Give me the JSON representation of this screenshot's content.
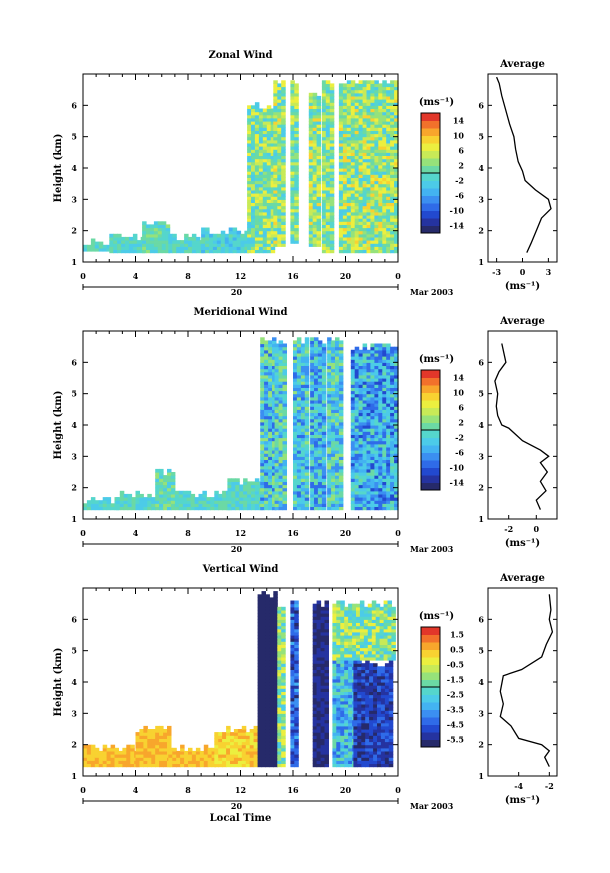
{
  "chart_data": [
    {
      "type": "heatmap",
      "title": "Zonal Wind",
      "ylabel": "Height (km)",
      "xlabel": "",
      "x_ticks": [
        "0",
        "4",
        "8",
        "12",
        "16",
        "20",
        "0"
      ],
      "y_ticks": [
        "1",
        "2",
        "3",
        "4",
        "5",
        "6"
      ],
      "date_label": "20",
      "month_label": "Mar 2003",
      "colorbar": {
        "unit": "(ms⁻¹)",
        "ticks": [
          "14",
          "10",
          "6",
          "2",
          "-2",
          "-6",
          "-10",
          "-14"
        ],
        "range": [
          -16,
          16
        ]
      },
      "profile": {
        "title": "Average",
        "ticks": [
          "-3",
          "0",
          "3"
        ],
        "xlim": [
          -4,
          4
        ],
        "xlabel": "(ms⁻¹)",
        "points": [
          [
            0.5,
            1.3
          ],
          [
            1.0,
            1.6
          ],
          [
            1.6,
            2.0
          ],
          [
            2.2,
            2.4
          ],
          [
            3.3,
            2.7
          ],
          [
            3.0,
            3.0
          ],
          [
            1.5,
            3.3
          ],
          [
            0.3,
            3.6
          ],
          [
            0.0,
            3.9
          ],
          [
            -0.5,
            4.2
          ],
          [
            -0.8,
            4.6
          ],
          [
            -1.0,
            5.0
          ],
          [
            -1.5,
            5.4
          ],
          [
            -2.0,
            5.9
          ],
          [
            -2.4,
            6.3
          ],
          [
            -2.7,
            6.7
          ],
          [
            -3.0,
            6.9
          ]
        ]
      },
      "ylim": [
        1,
        7
      ],
      "xlim": [
        0,
        24
      ],
      "columns": [
        {
          "t0": 0.0,
          "t1": 2.0,
          "bottom": 1.35,
          "top": 1.7,
          "mean": -1,
          "amp": 3
        },
        {
          "t0": 2.0,
          "t1": 4.5,
          "bottom": 1.3,
          "top": 1.9,
          "mean": -1,
          "amp": 3
        },
        {
          "t0": 4.5,
          "t1": 6.5,
          "bottom": 1.3,
          "top": 2.35,
          "mean": 0,
          "amp": 3
        },
        {
          "t0": 6.5,
          "t1": 9.0,
          "bottom": 1.3,
          "top": 1.9,
          "mean": -1,
          "amp": 3
        },
        {
          "t0": 9.0,
          "t1": 12.5,
          "bottom": 1.3,
          "top": 2.1,
          "mean": -2,
          "amp": 3
        },
        {
          "t0": 12.5,
          "t1": 14.5,
          "bottom": 1.3,
          "top": 6.1,
          "mean": 2,
          "amp": 6
        },
        {
          "t0": 14.5,
          "t1": 15.2,
          "bottom": 1.5,
          "top": 6.8,
          "mean": 3,
          "amp": 6
        },
        {
          "t0": 15.8,
          "t1": 16.4,
          "bottom": 1.6,
          "top": 6.8,
          "mean": 2,
          "amp": 5
        },
        {
          "t0": 17.2,
          "t1": 17.9,
          "bottom": 1.5,
          "top": 6.5,
          "mean": 3,
          "amp": 6
        },
        {
          "t0": 18.2,
          "t1": 19.0,
          "bottom": 1.3,
          "top": 6.8,
          "mean": 2,
          "amp": 5
        },
        {
          "t0": 19.5,
          "t1": 24.0,
          "bottom": 1.3,
          "top": 6.8,
          "mean": 3,
          "amp": 6
        }
      ]
    },
    {
      "type": "heatmap",
      "title": "Meridional Wind",
      "ylabel": "Height (km)",
      "xlabel": "",
      "x_ticks": [
        "0",
        "4",
        "8",
        "12",
        "16",
        "20",
        "0"
      ],
      "y_ticks": [
        "1",
        "2",
        "3",
        "4",
        "5",
        "6"
      ],
      "date_label": "20",
      "month_label": "Mar 2003",
      "colorbar": {
        "unit": "(ms⁻¹)",
        "ticks": [
          "14",
          "10",
          "6",
          "2",
          "-2",
          "-6",
          "-10",
          "-14"
        ],
        "range": [
          -16,
          16
        ]
      },
      "profile": {
        "title": "Average",
        "ticks": [
          "-2",
          "0"
        ],
        "xlim": [
          -3.5,
          1.5
        ],
        "xlabel": "(ms⁻¹)",
        "points": [
          [
            0.3,
            1.3
          ],
          [
            0.0,
            1.6
          ],
          [
            0.7,
            1.9
          ],
          [
            0.3,
            2.2
          ],
          [
            0.8,
            2.5
          ],
          [
            0.3,
            2.8
          ],
          [
            0.9,
            3.0
          ],
          [
            0.3,
            3.2
          ],
          [
            -1.0,
            3.5
          ],
          [
            -2.0,
            3.9
          ],
          [
            -2.5,
            4.0
          ],
          [
            -2.8,
            4.3
          ],
          [
            -2.9,
            4.6
          ],
          [
            -2.8,
            5.0
          ],
          [
            -3.0,
            5.4
          ],
          [
            -2.7,
            5.7
          ],
          [
            -2.2,
            6.0
          ],
          [
            -2.5,
            6.6
          ]
        ]
      },
      "ylim": [
        1,
        7
      ],
      "xlim": [
        0,
        24
      ],
      "columns": [
        {
          "t0": 0.0,
          "t1": 2.5,
          "bottom": 1.3,
          "top": 1.7,
          "mean": -1,
          "amp": 3
        },
        {
          "t0": 2.5,
          "t1": 5.5,
          "bottom": 1.3,
          "top": 1.9,
          "mean": -1,
          "amp": 3
        },
        {
          "t0": 5.5,
          "t1": 7.0,
          "bottom": 1.3,
          "top": 2.6,
          "mean": 0,
          "amp": 3
        },
        {
          "t0": 7.0,
          "t1": 11.0,
          "bottom": 1.3,
          "top": 1.9,
          "mean": -1,
          "amp": 3
        },
        {
          "t0": 11.0,
          "t1": 13.5,
          "bottom": 1.3,
          "top": 2.3,
          "mean": -1,
          "amp": 3
        },
        {
          "t0": 13.5,
          "t1": 14.6,
          "bottom": 1.3,
          "top": 6.8,
          "mean": -3,
          "amp": 7
        },
        {
          "t0": 14.6,
          "t1": 15.3,
          "bottom": 1.3,
          "top": 6.8,
          "mean": -2,
          "amp": 6
        },
        {
          "t0": 16.0,
          "t1": 17.0,
          "bottom": 1.3,
          "top": 6.8,
          "mean": -3,
          "amp": 6
        },
        {
          "t0": 17.3,
          "t1": 18.4,
          "bottom": 1.3,
          "top": 6.8,
          "mean": -4,
          "amp": 6
        },
        {
          "t0": 18.6,
          "t1": 19.6,
          "bottom": 1.3,
          "top": 6.8,
          "mean": -2,
          "amp": 6
        },
        {
          "t0": 20.4,
          "t1": 24.0,
          "bottom": 1.3,
          "top": 6.6,
          "mean": -5,
          "amp": 6
        }
      ]
    },
    {
      "type": "heatmap",
      "title": "Vertical Wind",
      "ylabel": "Height (km)",
      "xlabel": "Local Time",
      "x_ticks": [
        "0",
        "4",
        "8",
        "12",
        "16",
        "20",
        "0"
      ],
      "y_ticks": [
        "1",
        "2",
        "3",
        "4",
        "5",
        "6"
      ],
      "date_label": "20",
      "month_label": "Mar 2003",
      "colorbar": {
        "unit": "(ms⁻¹)",
        "ticks": [
          "1.5",
          "0.5",
          "-0.5",
          "-1.5",
          "-2.5",
          "-3.5",
          "-4.5",
          "-5.5"
        ],
        "range": [
          -6,
          2
        ]
      },
      "profile": {
        "title": "Average",
        "ticks": [
          "-4",
          "-2"
        ],
        "xlim": [
          -6,
          -1.5
        ],
        "xlabel": "(ms⁻¹)",
        "points": [
          [
            -2.0,
            1.3
          ],
          [
            -2.3,
            1.6
          ],
          [
            -2.0,
            1.8
          ],
          [
            -2.5,
            2.0
          ],
          [
            -4.0,
            2.2
          ],
          [
            -4.5,
            2.6
          ],
          [
            -5.2,
            2.9
          ],
          [
            -5.0,
            3.3
          ],
          [
            -5.2,
            3.7
          ],
          [
            -5.0,
            4.2
          ],
          [
            -3.8,
            4.4
          ],
          [
            -2.5,
            4.8
          ],
          [
            -2.2,
            5.2
          ],
          [
            -1.8,
            5.6
          ],
          [
            -2.0,
            6.0
          ],
          [
            -1.9,
            6.3
          ],
          [
            -2.0,
            6.8
          ]
        ]
      },
      "ylim": [
        1,
        7
      ],
      "xlim": [
        0,
        24
      ],
      "columns": [
        {
          "t0": 0.0,
          "t1": 4.0,
          "bottom": 1.3,
          "top": 2.0,
          "mean": 0.5,
          "amp": 0.5
        },
        {
          "t0": 4.0,
          "t1": 6.5,
          "bottom": 1.3,
          "top": 2.6,
          "mean": 0.5,
          "amp": 0.5
        },
        {
          "t0": 6.5,
          "t1": 10.0,
          "bottom": 1.3,
          "top": 2.0,
          "mean": 0.5,
          "amp": 0.5
        },
        {
          "t0": 10.0,
          "t1": 13.3,
          "bottom": 1.3,
          "top": 2.6,
          "mean": 0.2,
          "amp": 0.6
        },
        {
          "t0": 13.3,
          "t1": 14.8,
          "bottom": 1.3,
          "top": 6.9,
          "mean": -5.8,
          "amp": 0.2
        },
        {
          "t0": 14.8,
          "t1": 15.3,
          "bottom": 1.3,
          "top": 6.5,
          "mean": -1.5,
          "amp": 1.5
        },
        {
          "t0": 15.8,
          "t1": 16.4,
          "bottom": 1.3,
          "top": 6.6,
          "mean": -4.5,
          "amp": 1.2
        },
        {
          "t0": 17.5,
          "t1": 18.5,
          "bottom": 1.3,
          "top": 6.6,
          "mean": -5.5,
          "amp": 0.4
        },
        {
          "t0": 19.0,
          "t1": 20.6,
          "bottom": 1.3,
          "top": 5.2,
          "mean": -3.0,
          "amp": 1.5
        },
        {
          "t0": 20.6,
          "t1": 23.5,
          "bottom": 1.3,
          "top": 4.7,
          "mean": -5.0,
          "amp": 0.8
        },
        {
          "t0": 19.0,
          "t1": 23.8,
          "bottom": 4.7,
          "top": 6.6,
          "mean": -1.5,
          "amp": 1.5
        }
      ]
    }
  ]
}
